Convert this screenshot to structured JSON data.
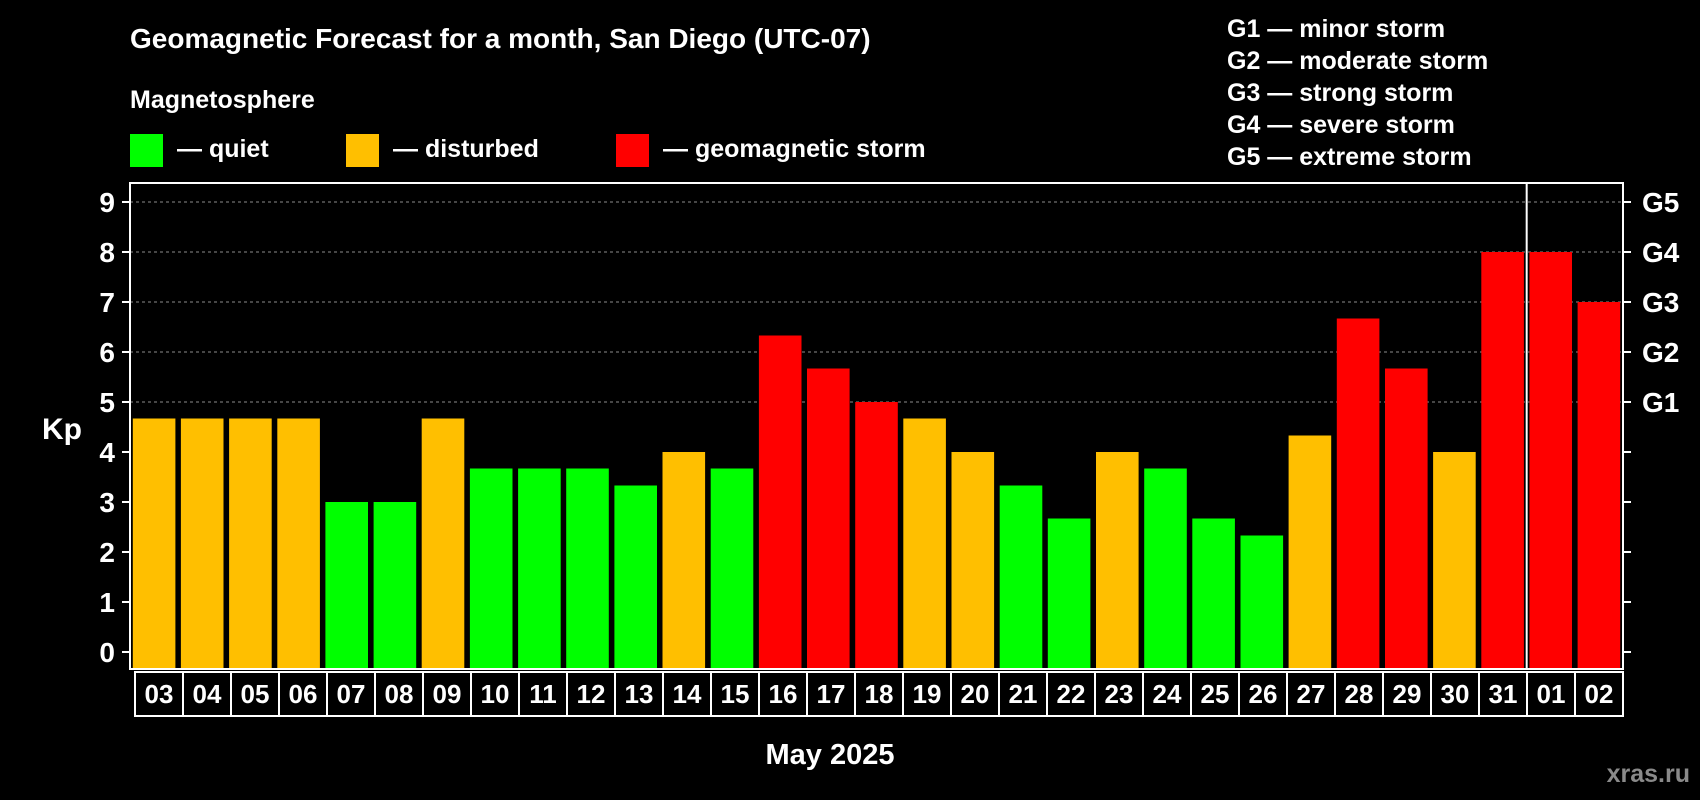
{
  "chart_data": {
    "type": "bar",
    "title": "Geomagnetic Forecast for a month, San Diego (UTC-07)",
    "legend_heading": "Magnetosphere",
    "legend": [
      {
        "label": "— quiet",
        "color": "#00ff00"
      },
      {
        "label": "— disturbed",
        "color": "#ffbf00"
      },
      {
        "label": "— geomagnetic storm",
        "color": "#ff0000"
      }
    ],
    "storm_scale": [
      "G1 — minor storm",
      "G2 — moderate storm",
      "G3 — strong storm",
      "G4 — severe storm",
      "G5 — extreme storm"
    ],
    "ylabel": "Kp",
    "xlabel": "May 2025",
    "ylim": [
      0,
      9
    ],
    "yticks": [
      "0",
      "1",
      "2",
      "3",
      "4",
      "5",
      "6",
      "7",
      "8",
      "9"
    ],
    "right_axis_labels": [
      {
        "kp": 5,
        "label": "G1"
      },
      {
        "kp": 6,
        "label": "G2"
      },
      {
        "kp": 7,
        "label": "G3"
      },
      {
        "kp": 8,
        "label": "G4"
      },
      {
        "kp": 9,
        "label": "G5"
      }
    ],
    "month_divider_after": "31",
    "categories": [
      "03",
      "04",
      "05",
      "06",
      "07",
      "08",
      "09",
      "10",
      "11",
      "12",
      "13",
      "14",
      "15",
      "16",
      "17",
      "18",
      "19",
      "20",
      "21",
      "22",
      "23",
      "24",
      "25",
      "26",
      "27",
      "28",
      "29",
      "30",
      "31",
      "01",
      "02"
    ],
    "values": [
      4.67,
      4.67,
      4.67,
      4.67,
      3.0,
      3.0,
      4.67,
      3.67,
      3.67,
      3.67,
      3.33,
      4.0,
      3.67,
      6.33,
      5.67,
      5.0,
      4.67,
      4.0,
      3.33,
      2.67,
      4.0,
      3.67,
      2.67,
      2.33,
      4.33,
      6.67,
      5.67,
      4.0,
      8.0,
      8.0,
      7.0
    ],
    "levels": [
      "disturbed",
      "disturbed",
      "disturbed",
      "disturbed",
      "quiet",
      "quiet",
      "disturbed",
      "quiet",
      "quiet",
      "quiet",
      "quiet",
      "disturbed",
      "quiet",
      "storm",
      "storm",
      "storm",
      "disturbed",
      "disturbed",
      "quiet",
      "quiet",
      "disturbed",
      "quiet",
      "quiet",
      "quiet",
      "disturbed",
      "storm",
      "storm",
      "disturbed",
      "storm",
      "storm",
      "storm"
    ],
    "level_colors": {
      "quiet": "#00ff00",
      "disturbed": "#ffbf00",
      "storm": "#ff0000"
    },
    "grid": "dashed at integer Kp 5-9"
  },
  "watermark": "xras.ru"
}
